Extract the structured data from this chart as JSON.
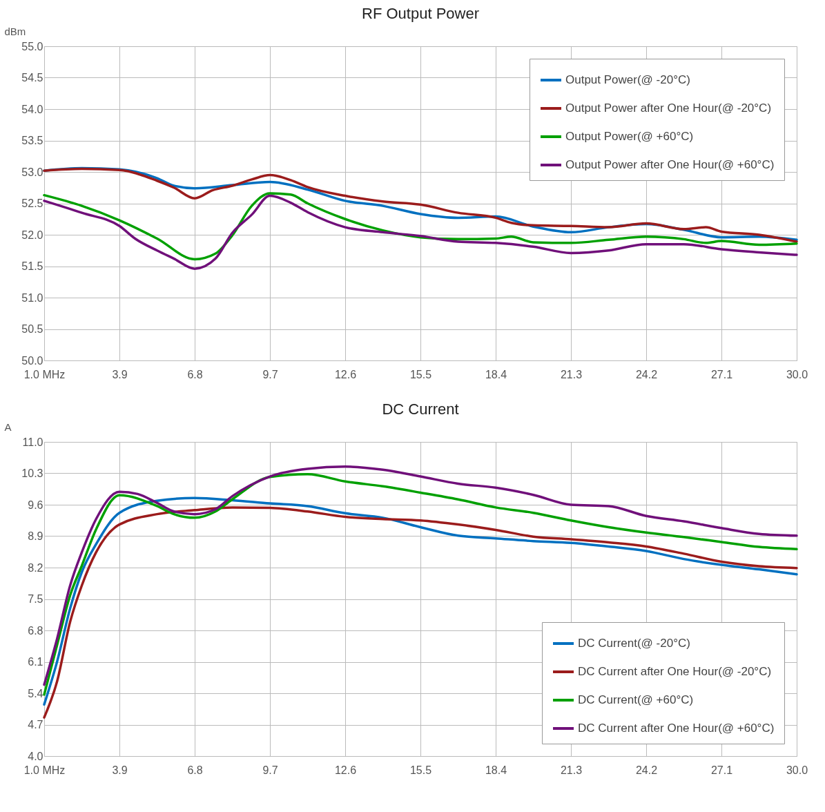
{
  "chart_data": [
    {
      "type": "line",
      "title": "RF Output Power",
      "ylabel": "dBm",
      "grid": true,
      "legend": "top right",
      "marker": "none",
      "line_style": "solid",
      "xlim": [
        1.0,
        30.0
      ],
      "xticks": [
        {
          "value": 1.0,
          "label": "1.0  MHz"
        },
        {
          "value": 3.9,
          "label": "3.9"
        },
        {
          "value": 6.8,
          "label": "6.8"
        },
        {
          "value": 9.7,
          "label": "9.7"
        },
        {
          "value": 12.6,
          "label": "12.6"
        },
        {
          "value": 15.5,
          "label": "15.5"
        },
        {
          "value": 18.4,
          "label": "18.4"
        },
        {
          "value": 21.3,
          "label": "21.3"
        },
        {
          "value": 24.2,
          "label": "24.2"
        },
        {
          "value": 27.1,
          "label": "27.1"
        },
        {
          "value": 30.0,
          "label": "30.0"
        }
      ],
      "ylim": [
        50.0,
        55.0
      ],
      "yticks": [
        {
          "value": 50.0,
          "label": "50.0"
        },
        {
          "value": 50.5,
          "label": "50.5"
        },
        {
          "value": 51.0,
          "label": "51.0"
        },
        {
          "value": 51.5,
          "label": "51.5"
        },
        {
          "value": 52.0,
          "label": "52.0"
        },
        {
          "value": 52.5,
          "label": "52.5"
        },
        {
          "value": 53.0,
          "label": "53.0"
        },
        {
          "value": 53.5,
          "label": "53.5"
        },
        {
          "value": 54.0,
          "label": "54.0"
        },
        {
          "value": 54.5,
          "label": "54.5"
        },
        {
          "value": 55.0,
          "label": "55.0"
        }
      ],
      "series": [
        {
          "name": "Output Power(@ -20°C)",
          "color": "#0070c0",
          "x": [
            1.0,
            2.45,
            3.9,
            5.35,
            6.0,
            6.8,
            8.25,
            9.7,
            11.15,
            12.6,
            14.05,
            15.5,
            16.95,
            18.4,
            19.85,
            21.3,
            22.75,
            24.2,
            25.65,
            27.1,
            28.55,
            30.0
          ],
          "values": [
            53.02,
            53.06,
            53.04,
            52.9,
            52.78,
            52.74,
            52.79,
            52.84,
            52.72,
            52.54,
            52.46,
            52.33,
            52.27,
            52.29,
            52.13,
            52.04,
            52.12,
            52.17,
            52.08,
            51.96,
            51.97,
            51.92
          ]
        },
        {
          "name": "Output Power after One Hour(@ -20°C)",
          "color": "#9b1c1c",
          "x": [
            1.0,
            2.45,
            3.9,
            5.35,
            6.0,
            6.8,
            7.5,
            8.25,
            9.0,
            9.7,
            10.5,
            11.15,
            12.6,
            14.05,
            15.5,
            16.95,
            18.4,
            19.0,
            19.85,
            21.3,
            22.75,
            24.2,
            25.65,
            26.5,
            27.1,
            28.55,
            30.0
          ],
          "values": [
            53.02,
            53.05,
            53.03,
            52.86,
            52.75,
            52.58,
            52.71,
            52.78,
            52.88,
            52.95,
            52.87,
            52.76,
            52.62,
            52.53,
            52.48,
            52.35,
            52.27,
            52.19,
            52.15,
            52.14,
            52.12,
            52.18,
            52.09,
            52.12,
            52.05,
            52.0,
            51.89
          ]
        },
        {
          "name": "Output Power(@ +60°C)",
          "color": "#00a000",
          "x": [
            1.0,
            2.45,
            3.9,
            5.35,
            6.8,
            7.6,
            8.25,
            9.0,
            9.7,
            10.5,
            11.15,
            12.6,
            14.05,
            15.5,
            16.95,
            18.4,
            19.0,
            19.85,
            21.3,
            22.75,
            24.2,
            25.65,
            26.5,
            27.1,
            28.55,
            30.0
          ],
          "values": [
            52.63,
            52.46,
            52.23,
            51.94,
            51.61,
            51.7,
            51.99,
            52.46,
            52.66,
            52.64,
            52.5,
            52.25,
            52.07,
            51.96,
            51.93,
            51.94,
            51.97,
            51.88,
            51.87,
            51.92,
            51.97,
            51.93,
            51.87,
            51.9,
            51.84,
            51.86
          ]
        },
        {
          "name": "Output Power after One Hour(@ +60°C)",
          "color": "#70107a",
          "x": [
            1.0,
            2.45,
            3.9,
            4.5,
            5.35,
            6.0,
            6.8,
            7.6,
            8.25,
            9.0,
            9.7,
            10.5,
            11.15,
            12.6,
            14.05,
            15.5,
            16.95,
            18.4,
            19.85,
            21.3,
            22.75,
            24.2,
            25.65,
            27.1,
            28.55,
            30.0
          ],
          "values": [
            52.54,
            52.35,
            52.14,
            51.94,
            51.75,
            51.62,
            51.46,
            51.62,
            52.03,
            52.32,
            52.62,
            52.51,
            52.36,
            52.12,
            52.04,
            51.98,
            51.89,
            51.87,
            51.81,
            51.71,
            51.75,
            51.85,
            51.85,
            51.77,
            51.72,
            51.68
          ]
        }
      ]
    },
    {
      "type": "line",
      "title": "DC Current",
      "ylabel": "A",
      "grid": true,
      "legend": "bottom right",
      "marker": "none",
      "line_style": "solid",
      "xlim": [
        1.0,
        30.0
      ],
      "xticks": [
        {
          "value": 1.0,
          "label": "1.0  MHz"
        },
        {
          "value": 3.9,
          "label": "3.9"
        },
        {
          "value": 6.8,
          "label": "6.8"
        },
        {
          "value": 9.7,
          "label": "9.7"
        },
        {
          "value": 12.6,
          "label": "12.6"
        },
        {
          "value": 15.5,
          "label": "15.5"
        },
        {
          "value": 18.4,
          "label": "18.4"
        },
        {
          "value": 21.3,
          "label": "21.3"
        },
        {
          "value": 24.2,
          "label": "24.2"
        },
        {
          "value": 27.1,
          "label": "27.1"
        },
        {
          "value": 30.0,
          "label": "30.0"
        }
      ],
      "ylim": [
        4.0,
        11.0
      ],
      "yticks": [
        {
          "value": 4.0,
          "label": "4.0"
        },
        {
          "value": 4.7,
          "label": "4.7"
        },
        {
          "value": 5.4,
          "label": "5.4"
        },
        {
          "value": 6.1,
          "label": "6.1"
        },
        {
          "value": 6.8,
          "label": "6.8"
        },
        {
          "value": 7.5,
          "label": "7.5"
        },
        {
          "value": 8.2,
          "label": "8.2"
        },
        {
          "value": 8.9,
          "label": "8.9"
        },
        {
          "value": 9.6,
          "label": "9.6"
        },
        {
          "value": 10.3,
          "label": "10.3"
        },
        {
          "value": 11.0,
          "label": "11.0"
        }
      ],
      "series": [
        {
          "name": "DC Current(@ -20°C)",
          "color": "#0070c0",
          "x": [
            1.0,
            1.5,
            2.0,
            2.45,
            3.0,
            3.9,
            5.35,
            6.8,
            8.25,
            9.7,
            11.15,
            12.6,
            14.05,
            15.5,
            16.95,
            18.4,
            19.85,
            21.3,
            22.75,
            24.2,
            25.65,
            27.1,
            28.55,
            30.0
          ],
          "values": [
            5.15,
            6.11,
            7.29,
            8.1,
            8.72,
            9.42,
            9.69,
            9.75,
            9.7,
            9.63,
            9.57,
            9.41,
            9.31,
            9.1,
            8.91,
            8.85,
            8.79,
            8.75,
            8.67,
            8.57,
            8.39,
            8.26,
            8.16,
            8.05
          ]
        },
        {
          "name": "DC Current after One Hour(@ -20°C)",
          "color": "#9b1c1c",
          "x": [
            1.0,
            1.5,
            2.0,
            2.45,
            3.0,
            3.9,
            5.35,
            6.8,
            8.25,
            9.7,
            11.15,
            12.6,
            14.05,
            15.5,
            16.95,
            18.4,
            19.85,
            21.3,
            22.75,
            24.2,
            25.65,
            27.1,
            28.55,
            30.0
          ],
          "values": [
            4.86,
            5.67,
            6.99,
            7.8,
            8.54,
            9.16,
            9.39,
            9.48,
            9.54,
            9.53,
            9.45,
            9.33,
            9.28,
            9.25,
            9.16,
            9.04,
            8.89,
            8.83,
            8.76,
            8.67,
            8.51,
            8.33,
            8.23,
            8.19
          ]
        },
        {
          "name": "DC Current(@ +60°C)",
          "color": "#00a000",
          "x": [
            1.0,
            1.5,
            2.0,
            2.45,
            3.0,
            3.9,
            5.35,
            6.0,
            6.8,
            7.6,
            8.25,
            9.7,
            11.15,
            12.6,
            14.05,
            15.5,
            16.95,
            18.4,
            19.85,
            21.3,
            22.75,
            24.2,
            25.65,
            27.1,
            28.55,
            30.0
          ],
          "values": [
            5.37,
            6.48,
            7.58,
            8.24,
            9.05,
            9.81,
            9.57,
            9.39,
            9.31,
            9.45,
            9.72,
            10.22,
            10.28,
            10.12,
            10.01,
            9.87,
            9.72,
            9.54,
            9.42,
            9.25,
            9.1,
            8.98,
            8.88,
            8.77,
            8.66,
            8.61
          ]
        },
        {
          "name": "DC Current after One Hour(@ +60°C)",
          "color": "#70107a",
          "x": [
            1.0,
            1.5,
            2.0,
            2.45,
            3.0,
            3.9,
            4.6,
            5.35,
            6.0,
            6.8,
            7.6,
            8.25,
            9.7,
            11.15,
            12.6,
            14.05,
            15.5,
            16.95,
            18.4,
            19.85,
            21.3,
            22.75,
            24.2,
            25.65,
            27.1,
            28.55,
            30.0
          ],
          "values": [
            5.59,
            6.62,
            7.8,
            8.54,
            9.28,
            9.89,
            9.84,
            9.64,
            9.45,
            9.39,
            9.5,
            9.79,
            10.23,
            10.4,
            10.45,
            10.38,
            10.23,
            10.07,
            9.98,
            9.82,
            9.6,
            9.57,
            9.35,
            9.23,
            9.08,
            8.95,
            8.91
          ]
        }
      ]
    }
  ]
}
